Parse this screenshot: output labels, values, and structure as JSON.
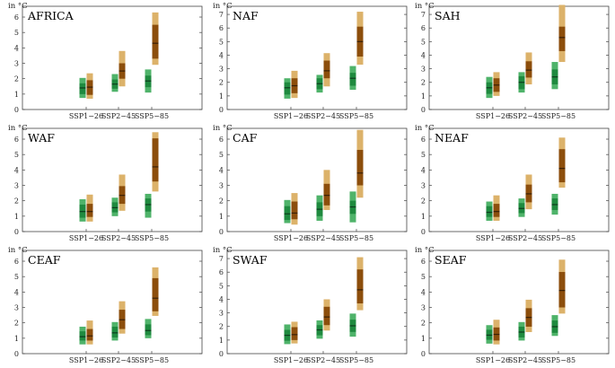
{
  "figure": {
    "unit_label": "in °C",
    "colors": {
      "green_light": "#4fb36a",
      "green_mid": "#1f8a3f",
      "green_line": "#0b3d1c",
      "brown_light": "#dcb26a",
      "brown_mid": "#8c4e0c",
      "brown_line": "#3a1f05"
    }
  },
  "chart_data": [
    {
      "type": "box",
      "title": "AFRICA",
      "ylabel": "in °C",
      "ylim": [
        0,
        6.7
      ],
      "yticks": [
        0,
        1,
        2,
        3,
        4,
        5,
        6
      ],
      "categories": [
        "SSP1−26",
        "SSP2−45",
        "SSP5−85"
      ],
      "series": [
        {
          "name": "green",
          "values": [
            {
              "outer": [
                0.75,
                2.05
              ],
              "inner": [
                1.0,
                1.7
              ],
              "median": 1.4
            },
            {
              "outer": [
                1.15,
                2.3
              ],
              "inner": [
                1.35,
                1.95
              ],
              "median": 1.65
            },
            {
              "outer": [
                1.1,
                2.6
              ],
              "inner": [
                1.45,
                2.2
              ],
              "median": 1.85
            }
          ]
        },
        {
          "name": "brown",
          "values": [
            {
              "outer": [
                0.7,
                2.35
              ],
              "inner": [
                0.95,
                1.9
              ],
              "median": 1.45
            },
            {
              "outer": [
                1.5,
                3.8
              ],
              "inner": [
                2.0,
                3.0
              ],
              "median": 2.5
            },
            {
              "outer": [
                2.9,
                6.3
              ],
              "inner": [
                3.3,
                5.5
              ],
              "median": 4.3
            }
          ]
        }
      ]
    },
    {
      "type": "box",
      "title": "NAF",
      "ylabel": "in °C",
      "ylim": [
        0,
        7.6
      ],
      "yticks": [
        0,
        1,
        2,
        3,
        4,
        5,
        6,
        7
      ],
      "categories": [
        "SSP1−26",
        "SSP2−45",
        "SSP5−85"
      ],
      "series": [
        {
          "name": "green",
          "values": [
            {
              "outer": [
                0.8,
                2.3
              ],
              "inner": [
                1.1,
                2.0
              ],
              "median": 1.6
            },
            {
              "outer": [
                1.25,
                2.55
              ],
              "inner": [
                1.5,
                2.3
              ],
              "median": 1.9
            },
            {
              "outer": [
                1.45,
                3.2
              ],
              "inner": [
                1.75,
                2.7
              ],
              "median": 2.3
            }
          ]
        },
        {
          "name": "brown",
          "values": [
            {
              "outer": [
                0.85,
                2.85
              ],
              "inner": [
                1.2,
                2.3
              ],
              "median": 1.75
            },
            {
              "outer": [
                1.7,
                4.15
              ],
              "inner": [
                2.3,
                3.6
              ],
              "median": 2.85
            },
            {
              "outer": [
                3.3,
                7.2
              ],
              "inner": [
                3.9,
                6.1
              ],
              "median": 5.0
            }
          ]
        }
      ]
    },
    {
      "type": "box",
      "title": "SAH",
      "ylabel": "in °C",
      "ylim": [
        0,
        7.6
      ],
      "yticks": [
        0,
        1,
        2,
        3,
        4,
        5,
        6,
        7
      ],
      "categories": [
        "SSP1−26",
        "SSP2−45",
        "SSP5−85"
      ],
      "series": [
        {
          "name": "green",
          "values": [
            {
              "outer": [
                0.85,
                2.4
              ],
              "inner": [
                1.15,
                2.0
              ],
              "median": 1.6
            },
            {
              "outer": [
                1.25,
                2.75
              ],
              "inner": [
                1.5,
                2.45
              ],
              "median": 2.0
            },
            {
              "outer": [
                1.5,
                3.5
              ],
              "inner": [
                1.85,
                2.95
              ],
              "median": 2.4
            }
          ]
        },
        {
          "name": "brown",
          "values": [
            {
              "outer": [
                1.0,
                2.75
              ],
              "inner": [
                1.3,
                2.3
              ],
              "median": 1.8
            },
            {
              "outer": [
                1.85,
                4.2
              ],
              "inner": [
                2.35,
                3.55
              ],
              "median": 2.9
            },
            {
              "outer": [
                3.5,
                7.7
              ],
              "inner": [
                4.3,
                6.1
              ],
              "median": 5.3
            }
          ]
        }
      ]
    },
    {
      "type": "box",
      "title": "WAF",
      "ylabel": "in °C",
      "ylim": [
        0,
        6.7
      ],
      "yticks": [
        0,
        1,
        2,
        3,
        4,
        5,
        6
      ],
      "categories": [
        "SSP1−26",
        "SSP2−45",
        "SSP5−85"
      ],
      "series": [
        {
          "name": "green",
          "values": [
            {
              "outer": [
                0.65,
                2.1
              ],
              "inner": [
                0.9,
                1.75
              ],
              "median": 1.3
            },
            {
              "outer": [
                1.0,
                2.2
              ],
              "inner": [
                1.25,
                1.9
              ],
              "median": 1.55
            },
            {
              "outer": [
                0.9,
                2.45
              ],
              "inner": [
                1.3,
                2.15
              ],
              "median": 1.75
            }
          ]
        },
        {
          "name": "brown",
          "values": [
            {
              "outer": [
                0.65,
                2.4
              ],
              "inner": [
                0.95,
                1.8
              ],
              "median": 1.3
            },
            {
              "outer": [
                1.35,
                3.7
              ],
              "inner": [
                1.8,
                2.95
              ],
              "median": 2.35
            },
            {
              "outer": [
                2.6,
                6.45
              ],
              "inner": [
                3.25,
                6.05
              ],
              "median": 4.2
            }
          ]
        }
      ]
    },
    {
      "type": "box",
      "title": "CAF",
      "ylabel": "in °C",
      "ylim": [
        0,
        6.7
      ],
      "yticks": [
        0,
        1,
        2,
        3,
        4,
        5,
        6
      ],
      "categories": [
        "SSP1−26",
        "SSP2−45",
        "SSP5−85"
      ],
      "series": [
        {
          "name": "green",
          "values": [
            {
              "outer": [
                0.55,
                2.05
              ],
              "inner": [
                0.75,
                1.65
              ],
              "median": 1.15
            },
            {
              "outer": [
                0.7,
                2.35
              ],
              "inner": [
                1.0,
                1.9
              ],
              "median": 1.45
            },
            {
              "outer": [
                0.6,
                2.6
              ],
              "inner": [
                1.15,
                2.0
              ],
              "median": 1.6
            }
          ]
        },
        {
          "name": "brown",
          "values": [
            {
              "outer": [
                0.45,
                2.5
              ],
              "inner": [
                0.8,
                1.95
              ],
              "median": 1.2
            },
            {
              "outer": [
                1.4,
                4.0
              ],
              "inner": [
                1.7,
                3.1
              ],
              "median": 2.35
            },
            {
              "outer": [
                2.2,
                6.6
              ],
              "inner": [
                3.0,
                5.3
              ],
              "median": 3.8
            }
          ]
        }
      ]
    },
    {
      "type": "box",
      "title": "NEAF",
      "ylabel": "in °C",
      "ylim": [
        0,
        6.7
      ],
      "yticks": [
        0,
        1,
        2,
        3,
        4,
        5,
        6
      ],
      "categories": [
        "SSP1−26",
        "SSP2−45",
        "SSP5−85"
      ],
      "series": [
        {
          "name": "green",
          "values": [
            {
              "outer": [
                0.7,
                1.95
              ],
              "inner": [
                0.95,
                1.65
              ],
              "median": 1.25
            },
            {
              "outer": [
                0.95,
                2.15
              ],
              "inner": [
                1.2,
                1.85
              ],
              "median": 1.5
            },
            {
              "outer": [
                1.1,
                2.45
              ],
              "inner": [
                1.4,
                2.15
              ],
              "median": 1.75
            }
          ]
        },
        {
          "name": "brown",
          "values": [
            {
              "outer": [
                0.7,
                2.35
              ],
              "inner": [
                0.95,
                1.8
              ],
              "median": 1.3
            },
            {
              "outer": [
                1.45,
                3.7
              ],
              "inner": [
                1.9,
                3.05
              ],
              "median": 2.45
            },
            {
              "outer": [
                2.85,
                6.1
              ],
              "inner": [
                3.2,
                5.35
              ],
              "median": 4.1
            }
          ]
        }
      ]
    },
    {
      "type": "box",
      "title": "CEAF",
      "ylabel": "in °C",
      "ylim": [
        0,
        6.7
      ],
      "yticks": [
        0,
        1,
        2,
        3,
        4,
        5,
        6
      ],
      "categories": [
        "SSP1−26",
        "SSP2−45",
        "SSP5−85"
      ],
      "series": [
        {
          "name": "green",
          "values": [
            {
              "outer": [
                0.6,
                1.75
              ],
              "inner": [
                0.85,
                1.45
              ],
              "median": 1.1
            },
            {
              "outer": [
                0.85,
                2.05
              ],
              "inner": [
                1.05,
                1.75
              ],
              "median": 1.35
            },
            {
              "outer": [
                1.0,
                2.25
              ],
              "inner": [
                1.2,
                1.9
              ],
              "median": 1.5
            }
          ]
        },
        {
          "name": "brown",
          "values": [
            {
              "outer": [
                0.6,
                2.15
              ],
              "inner": [
                0.85,
                1.6
              ],
              "median": 1.15
            },
            {
              "outer": [
                1.3,
                3.4
              ],
              "inner": [
                1.6,
                2.85
              ],
              "median": 2.2
            },
            {
              "outer": [
                2.45,
                5.6
              ],
              "inner": [
                2.75,
                4.9
              ],
              "median": 3.6
            }
          ]
        }
      ]
    },
    {
      "type": "box",
      "title": "SWAF",
      "ylabel": "in °C",
      "ylim": [
        0,
        7.6
      ],
      "yticks": [
        0,
        1,
        2,
        3,
        4,
        5,
        6,
        7
      ],
      "categories": [
        "SSP1−26",
        "SSP2−45",
        "SSP5−85"
      ],
      "series": [
        {
          "name": "green",
          "values": [
            {
              "outer": [
                0.7,
                2.15
              ],
              "inner": [
                0.95,
                1.75
              ],
              "median": 1.35
            },
            {
              "outer": [
                1.1,
                2.45
              ],
              "inner": [
                1.35,
                2.1
              ],
              "median": 1.75
            },
            {
              "outer": [
                1.25,
                2.95
              ],
              "inner": [
                1.6,
                2.5
              ],
              "median": 2.05
            }
          ]
        },
        {
          "name": "brown",
          "values": [
            {
              "outer": [
                0.75,
                2.35
              ],
              "inner": [
                1.0,
                1.95
              ],
              "median": 1.4
            },
            {
              "outer": [
                1.7,
                4.0
              ],
              "inner": [
                2.1,
                3.45
              ],
              "median": 2.7
            },
            {
              "outer": [
                3.2,
                7.1
              ],
              "inner": [
                3.7,
                6.2
              ],
              "median": 4.7
            }
          ]
        }
      ]
    },
    {
      "type": "box",
      "title": "SEAF",
      "ylabel": "in °C",
      "ylim": [
        0,
        6.7
      ],
      "yticks": [
        0,
        1,
        2,
        3,
        4,
        5,
        6
      ],
      "categories": [
        "SSP1−26",
        "SSP2−45",
        "SSP5−85"
      ],
      "series": [
        {
          "name": "green",
          "values": [
            {
              "outer": [
                0.65,
                1.85
              ],
              "inner": [
                0.9,
                1.55
              ],
              "median": 1.2
            },
            {
              "outer": [
                0.85,
                2.05
              ],
              "inner": [
                1.05,
                1.75
              ],
              "median": 1.4
            },
            {
              "outer": [
                1.15,
                2.5
              ],
              "inner": [
                1.35,
                2.15
              ],
              "median": 1.75
            }
          ]
        },
        {
          "name": "brown",
          "values": [
            {
              "outer": [
                0.6,
                2.2
              ],
              "inner": [
                0.85,
                1.7
              ],
              "median": 1.25
            },
            {
              "outer": [
                1.4,
                3.5
              ],
              "inner": [
                1.75,
                2.95
              ],
              "median": 2.35
            },
            {
              "outer": [
                2.6,
                6.1
              ],
              "inner": [
                3.0,
                5.3
              ],
              "median": 4.1
            }
          ]
        }
      ]
    }
  ]
}
